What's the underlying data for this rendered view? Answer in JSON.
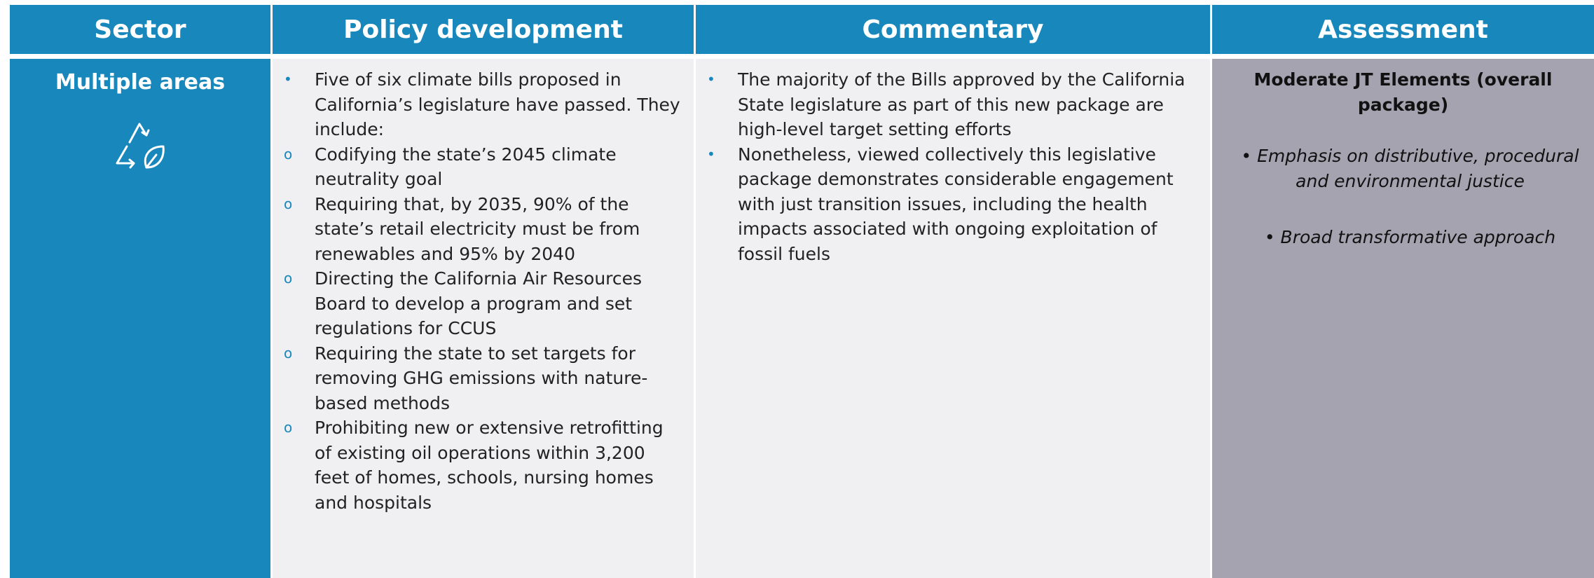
{
  "headers": [
    "Sector",
    "Policy development",
    "Commentary",
    "Assessment"
  ],
  "row": {
    "sector": "Multiple areas",
    "policy": {
      "intro": "Five of six climate bills proposed in California’s legislature have passed. They include:",
      "items": [
        "Codifying the state’s 2045 climate neutrality goal",
        "Requiring that, by 2035, 90% of the state’s retail electricity must be from renewables and 95% by 2040",
        "Directing the California Air Resources Board to develop a program and set regulations for CCUS",
        "Requiring the state to set targets for removing GHG emissions with nature-based methods",
        "Prohibiting new or extensive retrofitting of existing oil operations within 3,200 feet of homes, schools, nursing homes and hospitals"
      ]
    },
    "commentary": [
      "The majority of the Bills approved by the California State legislature as part of this new package are high-level target setting efforts",
      "Nonetheless, viewed collectively this legislative package demonstrates considerable engagement with just transition issues, including the health impacts associated with ongoing exploitation of fossil fuels"
    ],
    "assessment": {
      "title": "Moderate JT Elements (overall package)",
      "items": [
        "Emphasis on distributive, procedural and environmental justice",
        "Broad transformative approach"
      ]
    }
  }
}
